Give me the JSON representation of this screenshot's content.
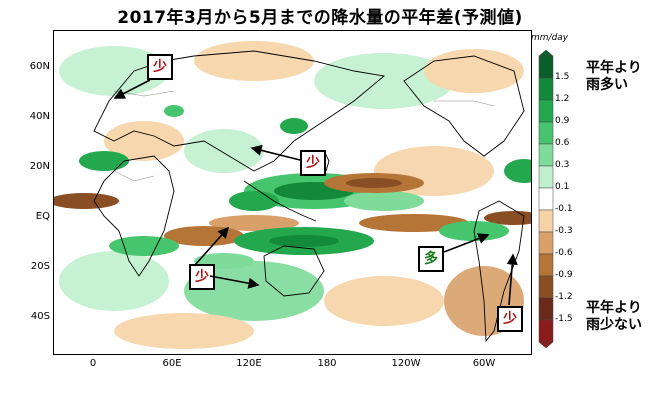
{
  "title": "2017年3月から5月までの降水量の平年差(予測値)",
  "lat_labels": [
    "60N",
    "40N",
    "20N",
    "EQ",
    "20S",
    "40S"
  ],
  "lon_labels": [
    "0",
    "60E",
    "120E",
    "180",
    "120W",
    "60W"
  ],
  "units": "mm/day",
  "colorbar": {
    "levels": [
      "1.5",
      "1.2",
      "0.9",
      "0.6",
      "0.3",
      "0.1",
      "-0.1",
      "-0.3",
      "-0.6",
      "-0.9",
      "-1.2",
      "-1.5"
    ],
    "colors": [
      "#0a5e2a",
      "#138a3a",
      "#23a84e",
      "#47c46e",
      "#7fdb9a",
      "#c2f0cf",
      "#ffffff",
      "#f6d3a6",
      "#d9a06a",
      "#b57536",
      "#8a4e24",
      "#6a2a1a",
      "#8a1c1c"
    ]
  },
  "legend": {
    "wetter": "平年より\n雨多い",
    "drier": "平年より\n雨少ない"
  },
  "callouts": {
    "few": "少",
    "many": "多"
  }
}
